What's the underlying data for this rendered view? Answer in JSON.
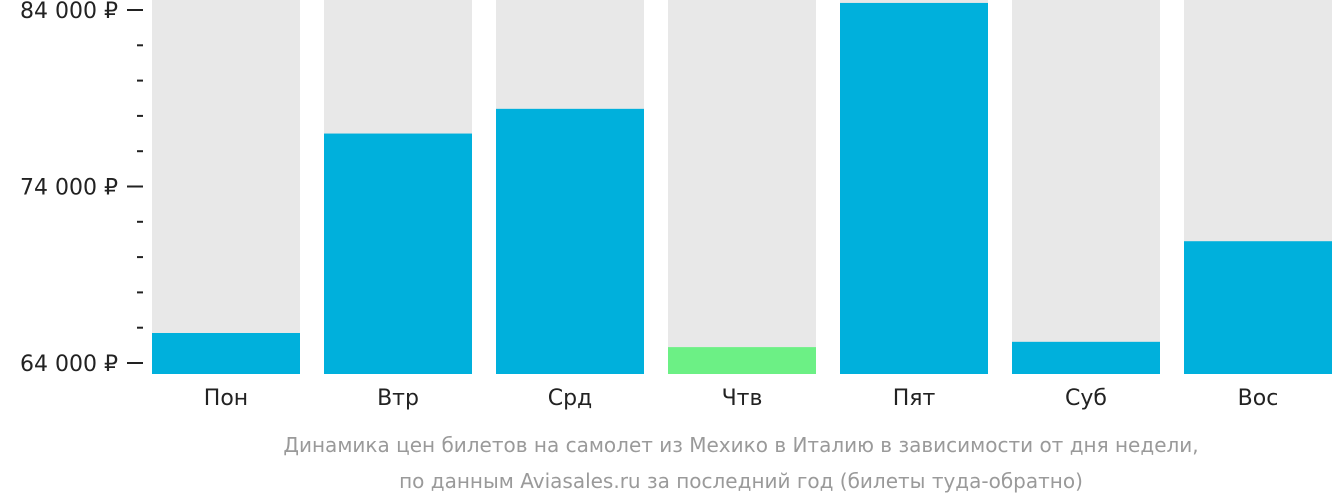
{
  "chart_data": {
    "type": "bar",
    "categories": [
      "Пон",
      "Втр",
      "Срд",
      "Чтв",
      "Пят",
      "Суб",
      "Вос"
    ],
    "values": [
      65700,
      77000,
      78400,
      64900,
      84400,
      65200,
      70900
    ],
    "ylim": [
      64000,
      84000
    ],
    "yticks": [
      64000,
      74000,
      84000
    ],
    "ytick_labels": [
      "64 000 ₽",
      "74 000 ₽",
      "84 000 ₽"
    ],
    "minor_ticks_between": 4,
    "caption": [
      "Динамика цен билетов на самолет из Мехико в Италию в зависимости от дня недели,",
      "по данным Aviasales.ru за последний год (билеты туда-обратно)"
    ],
    "colors": {
      "bar": "#00b0dc",
      "bar_min": "#6cf085",
      "bar_background": "#e8e8e8",
      "axis": "#222222",
      "caption": "#9a9a9a"
    },
    "grid": false,
    "legend": "none"
  }
}
